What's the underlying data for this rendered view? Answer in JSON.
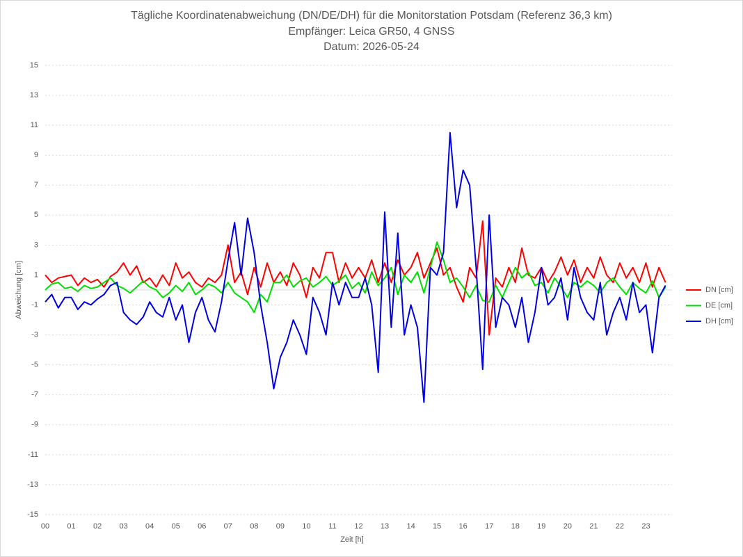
{
  "chart_data": {
    "type": "line",
    "title": "Tägliche Koordinatenabweichung (DN/DE/DH) für die Monitorstation Potsdam (Referenz 36,3 km)",
    "subtitle": "Empfänger: Leica GR50, 4 GNSS",
    "date_label": "Datum: 2026-05-24",
    "x_label": "Zeit [h]",
    "y_label": "Abweichung [cm]",
    "xlim": [
      0,
      24
    ],
    "ylim": [
      -15,
      15
    ],
    "yticks": [
      -15,
      -13,
      -11,
      -9,
      -7,
      -5,
      -3,
      -1,
      1,
      3,
      5,
      7,
      9,
      11,
      13,
      15
    ],
    "xticks": [
      {
        "value": 0,
        "label": "00"
      },
      {
        "value": 1,
        "label": "01"
      },
      {
        "value": 2,
        "label": "02"
      },
      {
        "value": 3,
        "label": "03"
      },
      {
        "value": 4,
        "label": "04"
      },
      {
        "value": 5,
        "label": "05"
      },
      {
        "value": 6,
        "label": "06"
      },
      {
        "value": 7,
        "label": "07"
      },
      {
        "value": 8,
        "label": "08"
      },
      {
        "value": 9,
        "label": "09"
      },
      {
        "value": 10,
        "label": "10"
      },
      {
        "value": 11,
        "label": "11"
      },
      {
        "value": 12,
        "label": "12"
      },
      {
        "value": 13,
        "label": "13"
      },
      {
        "value": 14,
        "label": "14"
      },
      {
        "value": 15,
        "label": "15"
      },
      {
        "value": 16,
        "label": "16"
      },
      {
        "value": 17,
        "label": "17"
      },
      {
        "value": 18,
        "label": "18"
      },
      {
        "value": 19,
        "label": "19"
      },
      {
        "value": 20,
        "label": "20"
      },
      {
        "value": 21,
        "label": "21"
      },
      {
        "value": 22,
        "label": "22"
      },
      {
        "value": 23,
        "label": "23"
      }
    ],
    "grid": true,
    "legend": "right",
    "x": [
      0,
      0.25,
      0.5,
      0.75,
      1,
      1.25,
      1.5,
      1.75,
      2,
      2.25,
      2.5,
      2.75,
      3,
      3.25,
      3.5,
      3.75,
      4,
      4.25,
      4.5,
      4.75,
      5,
      5.25,
      5.5,
      5.75,
      6,
      6.25,
      6.5,
      6.75,
      7,
      7.25,
      7.5,
      7.75,
      8,
      8.25,
      8.5,
      8.75,
      9,
      9.25,
      9.5,
      9.75,
      10,
      10.25,
      10.5,
      10.75,
      11,
      11.25,
      11.5,
      11.75,
      12,
      12.25,
      12.5,
      12.75,
      13,
      13.25,
      13.5,
      13.75,
      14,
      14.25,
      14.5,
      14.75,
      15,
      15.25,
      15.5,
      15.75,
      16,
      16.25,
      16.5,
      16.75,
      17,
      17.25,
      17.5,
      17.75,
      18,
      18.25,
      18.5,
      18.75,
      19,
      19.25,
      19.5,
      19.75,
      20,
      20.25,
      20.5,
      20.75,
      21,
      21.25,
      21.5,
      21.75,
      22,
      22.25,
      22.5,
      22.75,
      23,
      23.25,
      23.5,
      23.75
    ],
    "series": [
      {
        "name": "DN [cm]",
        "color": "#ff0000",
        "values": [
          1.0,
          0.5,
          0.8,
          0.9,
          1.0,
          0.3,
          0.8,
          0.5,
          0.7,
          0.2,
          0.9,
          1.2,
          1.8,
          1.0,
          1.6,
          0.5,
          0.8,
          0.2,
          1.0,
          0.3,
          1.8,
          0.8,
          1.2,
          0.5,
          0.2,
          0.8,
          0.5,
          1.0,
          3.0,
          0.5,
          1.2,
          -0.3,
          1.5,
          0.2,
          1.8,
          0.5,
          1.2,
          0.3,
          1.8,
          1.0,
          -0.5,
          1.5,
          0.8,
          2.5,
          2.5,
          0.5,
          1.8,
          0.8,
          1.5,
          0.8,
          2.0,
          0.5,
          1.8,
          0.5,
          2.0,
          1.0,
          1.5,
          2.5,
          0.8,
          1.8,
          2.8,
          1.0,
          1.5,
          0.2,
          -0.8,
          1.5,
          0.8,
          4.6,
          -3.0,
          0.8,
          0.2,
          1.5,
          0.5,
          2.8,
          1.0,
          0.8,
          1.5,
          0.5,
          1.2,
          2.2,
          1.0,
          2.0,
          0.5,
          1.5,
          0.8,
          2.2,
          1.0,
          0.5,
          1.8,
          0.8,
          1.5,
          0.5,
          1.8,
          0.2,
          1.5,
          0.5
        ]
      },
      {
        "name": "DE [cm]",
        "color": "#00e000",
        "values": [
          0,
          0.4,
          0.5,
          0.1,
          0.2,
          -0.1,
          0.3,
          0.1,
          0.2,
          0.5,
          0.8,
          0.3,
          0.1,
          -0.2,
          0.2,
          0.6,
          0.2,
          0,
          -0.5,
          -0.2,
          0.3,
          -0.1,
          0.5,
          -0.3,
          0,
          0.4,
          0.2,
          -0.2,
          0.5,
          -0.2,
          -0.5,
          -0.8,
          -1.5,
          -0.3,
          -0.8,
          0.5,
          0.5,
          1.0,
          0.2,
          0.6,
          0.8,
          0.2,
          0.5,
          0.9,
          0.3,
          0.6,
          1.0,
          0.1,
          0.5,
          -0.2,
          1.2,
          0.3,
          0.8,
          1.5,
          -0.3,
          1.0,
          0.5,
          1.2,
          -0.2,
          1.5,
          3.2,
          2.0,
          0.5,
          0.8,
          0.2,
          -0.5,
          0.3,
          -0.7,
          -0.8,
          0.3,
          -0.5,
          0.5,
          1.5,
          0.8,
          1.2,
          0.3,
          0.5,
          -0.2,
          0.8,
          0.2,
          -0.5,
          0.5,
          0.2,
          0.6,
          0.3,
          -0.2,
          0.5,
          0.8,
          0.2,
          -0.3,
          0.5,
          0.1,
          -0.2,
          0.6,
          -0.5,
          0.2
        ]
      },
      {
        "name": "DH [cm]",
        "color": "#0000e0",
        "values": [
          -0.8,
          -0.3,
          -1.2,
          -0.5,
          -0.5,
          -1.3,
          -0.8,
          -1.0,
          -0.6,
          -0.3,
          0.3,
          0.5,
          -1.5,
          -2.0,
          -2.3,
          -1.8,
          -0.8,
          -1.5,
          -1.8,
          -0.5,
          -2.0,
          -1.0,
          -3.5,
          -1.5,
          -0.5,
          -2.0,
          -2.8,
          -0.8,
          2.0,
          4.5,
          1.0,
          4.8,
          2.5,
          -1.0,
          -3.5,
          -6.6,
          -4.5,
          -3.5,
          -2.0,
          -3.0,
          -4.3,
          -0.5,
          -1.5,
          -3.0,
          0.5,
          -1.0,
          0.5,
          -0.5,
          -0.5,
          0.8,
          -1.0,
          -5.5,
          5.2,
          -2.5,
          3.8,
          -3.0,
          -1.0,
          -2.5,
          -7.5,
          1.5,
          1.0,
          2.5,
          10.5,
          5.5,
          8.0,
          7.0,
          1.5,
          -5.3,
          5.0,
          -2.5,
          -0.5,
          -1.0,
          -2.5,
          -0.5,
          -3.5,
          -1.5,
          1.5,
          -1.0,
          -0.5,
          0.8,
          -2.0,
          1.5,
          -0.5,
          -1.5,
          -2.0,
          0.5,
          -3.0,
          -1.5,
          -0.5,
          -2.0,
          0.5,
          -1.5,
          -1.0,
          -4.2,
          -0.5,
          0.3
        ]
      }
    ]
  }
}
